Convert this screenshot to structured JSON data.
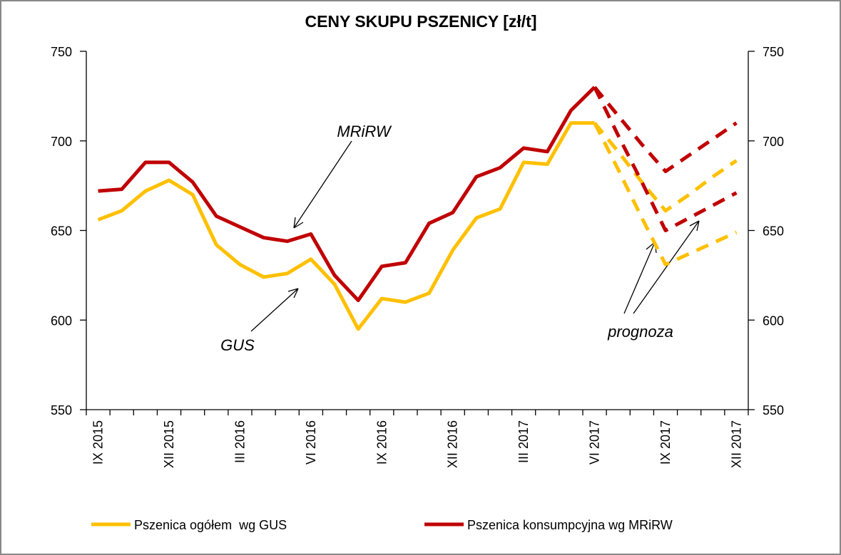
{
  "chart_data": {
    "type": "line",
    "title": "CENY SKUPU PSZENICY [zł/t]",
    "categories": [
      "IX 2015",
      null,
      null,
      "XII 2015",
      null,
      null,
      "III 2016",
      null,
      null,
      "VI 2016",
      null,
      null,
      "IX 2016",
      null,
      null,
      "XII 2016",
      null,
      null,
      "III 2017",
      null,
      null,
      "VI 2017",
      null,
      null,
      "IX 2017",
      null,
      null,
      "XII 2017"
    ],
    "series": [
      {
        "name": "Pszenica ogółem  wg GUS",
        "color": "#ffc000",
        "values": [
          656,
          661,
          672,
          678,
          670,
          642,
          631,
          624,
          626,
          634,
          620,
          595,
          612,
          610,
          615,
          639,
          657,
          662,
          688,
          687,
          710,
          710,
          null,
          null,
          null,
          null,
          null,
          null
        ],
        "forecast_high": [
          null,
          null,
          null,
          null,
          null,
          null,
          null,
          null,
          null,
          null,
          null,
          null,
          null,
          null,
          null,
          null,
          null,
          null,
          null,
          null,
          null,
          710,
          694,
          677,
          661,
          670,
          680,
          689
        ],
        "forecast_low": [
          null,
          null,
          null,
          null,
          null,
          null,
          null,
          null,
          null,
          null,
          null,
          null,
          null,
          null,
          null,
          null,
          null,
          null,
          null,
          null,
          null,
          710,
          684,
          657,
          631,
          637,
          643,
          649
        ]
      },
      {
        "name": "Pszenica konsumpcyjna wg MRiRW",
        "color": "#c00000",
        "values": [
          672,
          673,
          688,
          688,
          677,
          658,
          652,
          646,
          644,
          648,
          625,
          611,
          630,
          632,
          654,
          660,
          680,
          685,
          696,
          694,
          717,
          730,
          null,
          null,
          null,
          null,
          null,
          null
        ],
        "forecast_high": [
          null,
          null,
          null,
          null,
          null,
          null,
          null,
          null,
          null,
          null,
          null,
          null,
          null,
          null,
          null,
          null,
          null,
          null,
          null,
          null,
          null,
          730,
          714,
          698,
          683,
          692,
          701,
          710
        ],
        "forecast_low": [
          null,
          null,
          null,
          null,
          null,
          null,
          null,
          null,
          null,
          null,
          null,
          null,
          null,
          null,
          null,
          null,
          null,
          null,
          null,
          null,
          null,
          730,
          703,
          677,
          650,
          657,
          664,
          671
        ]
      }
    ],
    "annotations": [
      "MRiRW",
      "GUS",
      "prognoza"
    ],
    "ylim": [
      550,
      750
    ],
    "yticks": [
      550,
      600,
      650,
      700,
      750
    ],
    "y2lim": [
      550,
      750
    ],
    "y2ticks": [
      550,
      600,
      650,
      700,
      750
    ],
    "legend": "bottom"
  }
}
